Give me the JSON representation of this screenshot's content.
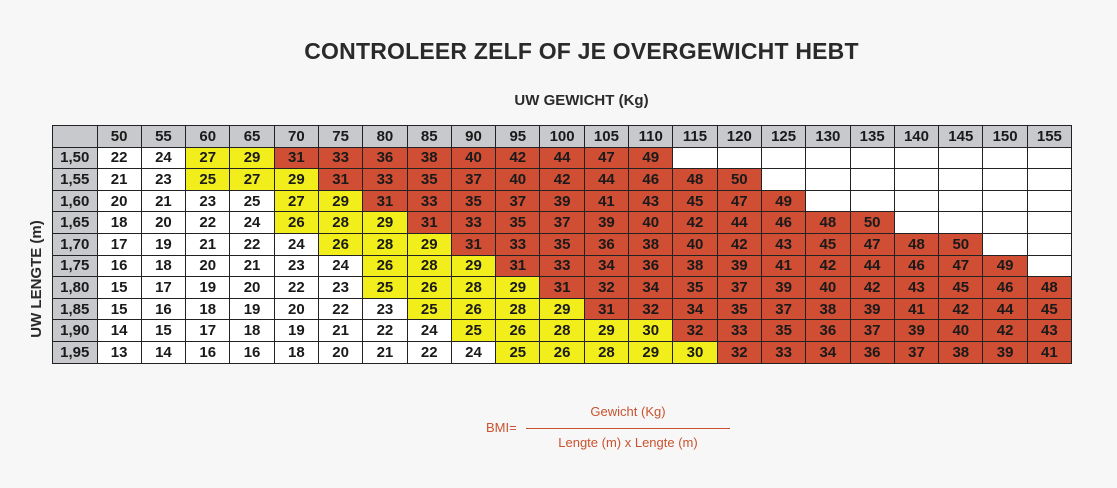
{
  "title": "CONTROLEER ZELF OF JE OVERGEWICHT HEBT",
  "x_axis_label": "UW GEWICHT (Kg)",
  "y_axis_label": "UW LENGTE (m)",
  "formula": {
    "lhs": "BMI=",
    "numerator": "Gewicht (Kg)",
    "denominator": "Lengte (m) x Lengte (m)"
  },
  "colors": {
    "white": "#ffffff",
    "yellow": "#f2ee1c",
    "red": "#cf4e34",
    "header": "#c8c9cc"
  },
  "weights": [
    "50",
    "55",
    "60",
    "65",
    "70",
    "75",
    "80",
    "85",
    "90",
    "95",
    "100",
    "105",
    "110",
    "115",
    "120",
    "125",
    "130",
    "135",
    "140",
    "145",
    "150",
    "155"
  ],
  "rows": [
    {
      "height": "1,50",
      "cells": [
        [
          "22",
          "w"
        ],
        [
          "24",
          "w"
        ],
        [
          "27",
          "y"
        ],
        [
          "29",
          "y"
        ],
        [
          "31",
          "r"
        ],
        [
          "33",
          "r"
        ],
        [
          "36",
          "r"
        ],
        [
          "38",
          "r"
        ],
        [
          "40",
          "r"
        ],
        [
          "42",
          "r"
        ],
        [
          "44",
          "r"
        ],
        [
          "47",
          "r"
        ],
        [
          "49",
          "r"
        ],
        [
          "",
          "e"
        ],
        [
          "",
          "e"
        ],
        [
          "",
          "e"
        ],
        [
          "",
          "e"
        ],
        [
          "",
          "e"
        ],
        [
          "",
          "e"
        ],
        [
          "",
          "e"
        ],
        [
          "",
          "e"
        ],
        [
          "",
          "e"
        ]
      ]
    },
    {
      "height": "1,55",
      "cells": [
        [
          "21",
          "w"
        ],
        [
          "23",
          "w"
        ],
        [
          "25",
          "y"
        ],
        [
          "27",
          "y"
        ],
        [
          "29",
          "y"
        ],
        [
          "31",
          "r"
        ],
        [
          "33",
          "r"
        ],
        [
          "35",
          "r"
        ],
        [
          "37",
          "r"
        ],
        [
          "40",
          "r"
        ],
        [
          "42",
          "r"
        ],
        [
          "44",
          "r"
        ],
        [
          "46",
          "r"
        ],
        [
          "48",
          "r"
        ],
        [
          "50",
          "r"
        ],
        [
          "",
          "e"
        ],
        [
          "",
          "e"
        ],
        [
          "",
          "e"
        ],
        [
          "",
          "e"
        ],
        [
          "",
          "e"
        ],
        [
          "",
          "e"
        ],
        [
          "",
          "e"
        ]
      ]
    },
    {
      "height": "1,60",
      "cells": [
        [
          "20",
          "w"
        ],
        [
          "21",
          "w"
        ],
        [
          "23",
          "w"
        ],
        [
          "25",
          "w"
        ],
        [
          "27",
          "y"
        ],
        [
          "29",
          "y"
        ],
        [
          "31",
          "r"
        ],
        [
          "33",
          "r"
        ],
        [
          "35",
          "r"
        ],
        [
          "37",
          "r"
        ],
        [
          "39",
          "r"
        ],
        [
          "41",
          "r"
        ],
        [
          "43",
          "r"
        ],
        [
          "45",
          "r"
        ],
        [
          "47",
          "r"
        ],
        [
          "49",
          "r"
        ],
        [
          "",
          "e"
        ],
        [
          "",
          "e"
        ],
        [
          "",
          "e"
        ],
        [
          "",
          "e"
        ],
        [
          "",
          "e"
        ],
        [
          "",
          "e"
        ]
      ]
    },
    {
      "height": "1,65",
      "cells": [
        [
          "18",
          "w"
        ],
        [
          "20",
          "w"
        ],
        [
          "22",
          "w"
        ],
        [
          "24",
          "w"
        ],
        [
          "26",
          "y"
        ],
        [
          "28",
          "y"
        ],
        [
          "29",
          "y"
        ],
        [
          "31",
          "r"
        ],
        [
          "33",
          "r"
        ],
        [
          "35",
          "r"
        ],
        [
          "37",
          "r"
        ],
        [
          "39",
          "r"
        ],
        [
          "40",
          "r"
        ],
        [
          "42",
          "r"
        ],
        [
          "44",
          "r"
        ],
        [
          "46",
          "r"
        ],
        [
          "48",
          "r"
        ],
        [
          "50",
          "r"
        ],
        [
          "",
          "e"
        ],
        [
          "",
          "e"
        ],
        [
          "",
          "e"
        ],
        [
          "",
          "e"
        ]
      ]
    },
    {
      "height": "1,70",
      "cells": [
        [
          "17",
          "faint"
        ],
        [
          "19",
          "w"
        ],
        [
          "21",
          "w"
        ],
        [
          "22",
          "w"
        ],
        [
          "24",
          "w"
        ],
        [
          "26",
          "y"
        ],
        [
          "28",
          "y"
        ],
        [
          "29",
          "y"
        ],
        [
          "31",
          "r"
        ],
        [
          "33",
          "r"
        ],
        [
          "35",
          "r"
        ],
        [
          "36",
          "r"
        ],
        [
          "38",
          "r"
        ],
        [
          "40",
          "r"
        ],
        [
          "42",
          "r"
        ],
        [
          "43",
          "r"
        ],
        [
          "45",
          "r"
        ],
        [
          "47",
          "r"
        ],
        [
          "48",
          "r"
        ],
        [
          "50",
          "r"
        ],
        [
          "",
          "e"
        ],
        [
          "",
          "e"
        ]
      ]
    },
    {
      "height": "1,75",
      "cells": [
        [
          "16",
          "faint"
        ],
        [
          "18",
          "w"
        ],
        [
          "20",
          "w"
        ],
        [
          "21",
          "w"
        ],
        [
          "23",
          "w"
        ],
        [
          "24",
          "w"
        ],
        [
          "26",
          "y"
        ],
        [
          "28",
          "y"
        ],
        [
          "29",
          "y"
        ],
        [
          "31",
          "r"
        ],
        [
          "33",
          "r"
        ],
        [
          "34",
          "r"
        ],
        [
          "36",
          "r"
        ],
        [
          "38",
          "r"
        ],
        [
          "39",
          "r"
        ],
        [
          "41",
          "r"
        ],
        [
          "42",
          "r"
        ],
        [
          "44",
          "r"
        ],
        [
          "46",
          "r"
        ],
        [
          "47",
          "r"
        ],
        [
          "49",
          "r"
        ],
        [
          "",
          "e"
        ]
      ]
    },
    {
      "height": "1,80",
      "cells": [
        [
          "15",
          "faint"
        ],
        [
          "17",
          "faint"
        ],
        [
          "19",
          "w"
        ],
        [
          "20",
          "w"
        ],
        [
          "22",
          "w"
        ],
        [
          "23",
          "w"
        ],
        [
          "25",
          "y"
        ],
        [
          "26",
          "y"
        ],
        [
          "28",
          "y"
        ],
        [
          "29",
          "y"
        ],
        [
          "31",
          "r"
        ],
        [
          "32",
          "r"
        ],
        [
          "34",
          "r"
        ],
        [
          "35",
          "r"
        ],
        [
          "37",
          "r"
        ],
        [
          "39",
          "r"
        ],
        [
          "40",
          "r"
        ],
        [
          "42",
          "r"
        ],
        [
          "43",
          "r"
        ],
        [
          "45",
          "r"
        ],
        [
          "46",
          "r"
        ],
        [
          "48",
          "r"
        ]
      ]
    },
    {
      "height": "1,85",
      "cells": [
        [
          "15",
          "faint"
        ],
        [
          "16",
          "faint"
        ],
        [
          "18",
          "w"
        ],
        [
          "19",
          "w"
        ],
        [
          "20",
          "w"
        ],
        [
          "22",
          "w"
        ],
        [
          "23",
          "w"
        ],
        [
          "25",
          "y"
        ],
        [
          "26",
          "y"
        ],
        [
          "28",
          "y"
        ],
        [
          "29",
          "y"
        ],
        [
          "31",
          "r"
        ],
        [
          "32",
          "r"
        ],
        [
          "34",
          "r"
        ],
        [
          "35",
          "r"
        ],
        [
          "37",
          "r"
        ],
        [
          "38",
          "r"
        ],
        [
          "39",
          "r"
        ],
        [
          "41",
          "r"
        ],
        [
          "42",
          "r"
        ],
        [
          "44",
          "r"
        ],
        [
          "45",
          "r"
        ]
      ]
    },
    {
      "height": "1,90",
      "cells": [
        [
          "14",
          "faint"
        ],
        [
          "15",
          "faint"
        ],
        [
          "17",
          "faint"
        ],
        [
          "18",
          "w"
        ],
        [
          "19",
          "w"
        ],
        [
          "21",
          "w"
        ],
        [
          "22",
          "w"
        ],
        [
          "24",
          "w"
        ],
        [
          "25",
          "y"
        ],
        [
          "26",
          "y"
        ],
        [
          "28",
          "y"
        ],
        [
          "29",
          "y"
        ],
        [
          "30",
          "y"
        ],
        [
          "32",
          "r"
        ],
        [
          "33",
          "r"
        ],
        [
          "35",
          "r"
        ],
        [
          "36",
          "r"
        ],
        [
          "37",
          "r"
        ],
        [
          "39",
          "r"
        ],
        [
          "40",
          "r"
        ],
        [
          "42",
          "r"
        ],
        [
          "43",
          "r"
        ]
      ]
    },
    {
      "height": "1,95",
      "cells": [
        [
          "13",
          "faint"
        ],
        [
          "14",
          "faint"
        ],
        [
          "16",
          "faint"
        ],
        [
          "16",
          "faint"
        ],
        [
          "18",
          "w"
        ],
        [
          "20",
          "w"
        ],
        [
          "21",
          "w"
        ],
        [
          "22",
          "w"
        ],
        [
          "24",
          "w"
        ],
        [
          "25",
          "y"
        ],
        [
          "26",
          "y"
        ],
        [
          "28",
          "y"
        ],
        [
          "29",
          "y"
        ],
        [
          "30",
          "y"
        ],
        [
          "32",
          "r"
        ],
        [
          "33",
          "r"
        ],
        [
          "34",
          "r"
        ],
        [
          "36",
          "r"
        ],
        [
          "37",
          "r"
        ],
        [
          "38",
          "r"
        ],
        [
          "39",
          "r"
        ],
        [
          "41",
          "r"
        ]
      ]
    }
  ]
}
